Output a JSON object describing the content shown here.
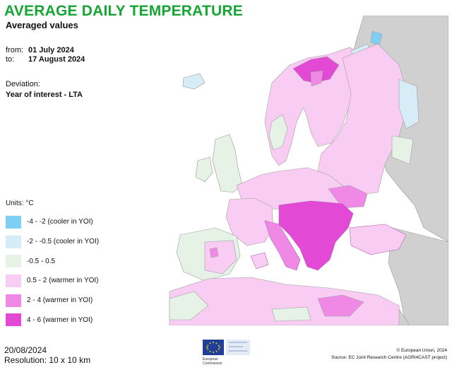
{
  "header": {
    "title": "AVERAGE DAILY TEMPERATURE",
    "subtitle": "Averaged values"
  },
  "period": {
    "from_label": "from:",
    "from_value": "01 July 2024",
    "to_label": "to:",
    "to_value": "17 August 2024"
  },
  "deviation": {
    "label": "Deviation:",
    "value": "Year of interest - LTA"
  },
  "legend": {
    "units": "Units: °C",
    "items": [
      {
        "label": "-4 - -2 (cooler in YOI)",
        "color": "#7fcff4"
      },
      {
        "label": "-2 - -0.5 (cooler in YOI)",
        "color": "#d6ecf7"
      },
      {
        "label": "-0.5 - 0.5",
        "color": "#e5f2e5"
      },
      {
        "label": "0.5 - 2 (warmer in YOI)",
        "color": "#f9cdf3"
      },
      {
        "label": "2 - 4 (warmer in YOI)",
        "color": "#f088e6"
      },
      {
        "label": "4 - 6 (warmer in YOI)",
        "color": "#e24ad6"
      }
    ]
  },
  "footer": {
    "date": "20/08/2024",
    "resolution": "Resolution: 10 x 10 km",
    "logo_text_1": "European",
    "logo_text_2": "Commission",
    "copyright": "© European Union, 2024",
    "source": "Source: EC Joint Research Centre (AGRI4CAST project)"
  },
  "colors": {
    "title_green": "#17a535",
    "non_eu_grey": "#d0d0d0",
    "border_grey": "#9a9a9a",
    "sea": "#ffffff"
  }
}
